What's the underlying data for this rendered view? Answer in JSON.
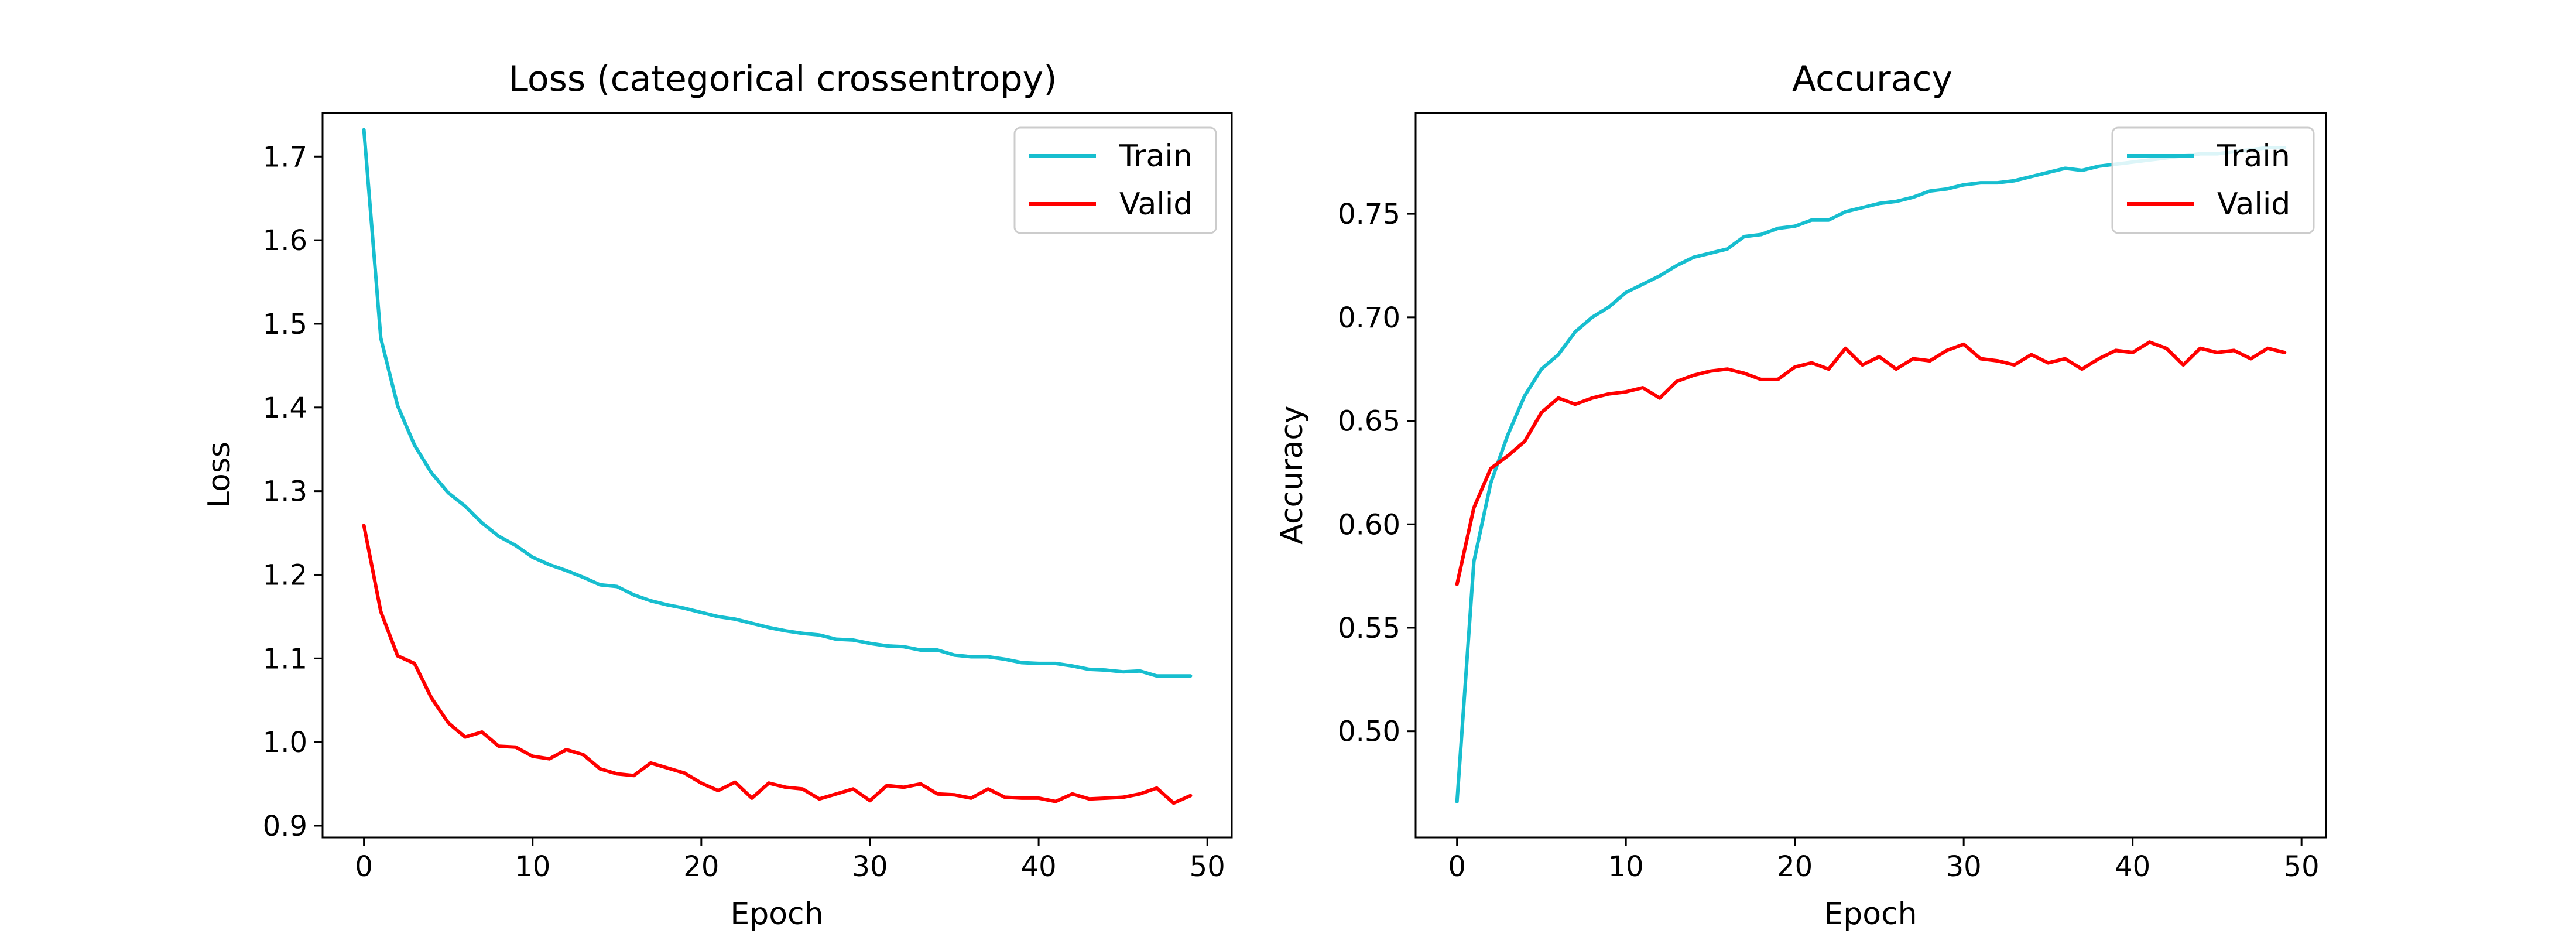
{
  "chart_data": [
    {
      "type": "line",
      "title": "Loss (categorical crossentropy)",
      "xlabel": "Epoch",
      "ylabel": "Loss",
      "xlim": [
        -2.45,
        51.45
      ],
      "ylim": [
        0.886,
        1.752
      ],
      "xticks": [
        0,
        10,
        20,
        30,
        40,
        50
      ],
      "yticks": [
        0.9,
        1.0,
        1.1,
        1.2,
        1.3,
        1.4,
        1.5,
        1.6,
        1.7
      ],
      "ytick_labels": [
        "0.9",
        "1.0",
        "1.1",
        "1.2",
        "1.3",
        "1.4",
        "1.5",
        "1.6",
        "1.7"
      ],
      "legend_position": "upper right",
      "grid": false,
      "series": [
        {
          "name": "Train",
          "color": "#17becf",
          "values": [
            1.732,
            1.483,
            1.402,
            1.355,
            1.322,
            1.298,
            1.282,
            1.262,
            1.246,
            1.235,
            1.221,
            1.212,
            1.205,
            1.197,
            1.188,
            1.186,
            1.176,
            1.169,
            1.164,
            1.16,
            1.155,
            1.15,
            1.147,
            1.142,
            1.137,
            1.133,
            1.13,
            1.128,
            1.123,
            1.122,
            1.118,
            1.115,
            1.114,
            1.11,
            1.11,
            1.104,
            1.102,
            1.102,
            1.099,
            1.095,
            1.094,
            1.094,
            1.091,
            1.087,
            1.086,
            1.084,
            1.085,
            1.079,
            1.079,
            1.079
          ]
        },
        {
          "name": "Valid",
          "color": "#ff0000",
          "values": [
            1.259,
            1.156,
            1.103,
            1.094,
            1.053,
            1.023,
            1.006,
            1.012,
            0.995,
            0.994,
            0.983,
            0.98,
            0.991,
            0.985,
            0.968,
            0.962,
            0.96,
            0.975,
            0.969,
            0.963,
            0.951,
            0.942,
            0.952,
            0.933,
            0.951,
            0.946,
            0.944,
            0.932,
            0.938,
            0.944,
            0.93,
            0.948,
            0.946,
            0.95,
            0.938,
            0.937,
            0.933,
            0.944,
            0.934,
            0.933,
            0.933,
            0.929,
            0.938,
            0.932,
            0.933,
            0.934,
            0.938,
            0.945,
            0.927,
            0.936
          ]
        }
      ]
    },
    {
      "type": "line",
      "title": "Accuracy",
      "xlabel": "Epoch",
      "ylabel": "Accuracy",
      "xlim": [
        -2.45,
        51.45
      ],
      "ylim": [
        0.4487,
        0.7987
      ],
      "xticks": [
        0,
        10,
        20,
        30,
        40,
        50
      ],
      "yticks": [
        0.5,
        0.55,
        0.6,
        0.65,
        0.7,
        0.75
      ],
      "ytick_labels": [
        "0.50",
        "0.55",
        "0.60",
        "0.65",
        "0.70",
        "0.75"
      ],
      "legend_position": "upper right",
      "grid": false,
      "series": [
        {
          "name": "Train",
          "color": "#17becf",
          "values": [
            0.466,
            0.582,
            0.62,
            0.643,
            0.662,
            0.675,
            0.682,
            0.693,
            0.7,
            0.705,
            0.712,
            0.716,
            0.72,
            0.725,
            0.729,
            0.731,
            0.733,
            0.739,
            0.74,
            0.743,
            0.744,
            0.747,
            0.747,
            0.751,
            0.753,
            0.755,
            0.756,
            0.758,
            0.761,
            0.762,
            0.764,
            0.765,
            0.765,
            0.766,
            0.768,
            0.77,
            0.772,
            0.771,
            0.773,
            0.774,
            0.775,
            0.776,
            0.777,
            0.778,
            0.779,
            0.779,
            0.78,
            0.781,
            0.782,
            0.782
          ]
        },
        {
          "name": "Valid",
          "color": "#ff0000",
          "values": [
            0.571,
            0.608,
            0.627,
            0.633,
            0.64,
            0.654,
            0.661,
            0.658,
            0.661,
            0.663,
            0.664,
            0.666,
            0.661,
            0.669,
            0.672,
            0.674,
            0.675,
            0.673,
            0.67,
            0.67,
            0.676,
            0.678,
            0.675,
            0.685,
            0.677,
            0.681,
            0.675,
            0.68,
            0.679,
            0.684,
            0.687,
            0.68,
            0.679,
            0.677,
            0.682,
            0.678,
            0.68,
            0.675,
            0.68,
            0.684,
            0.683,
            0.688,
            0.685,
            0.677,
            0.685,
            0.683,
            0.684,
            0.68,
            0.685,
            0.683
          ]
        }
      ]
    }
  ]
}
